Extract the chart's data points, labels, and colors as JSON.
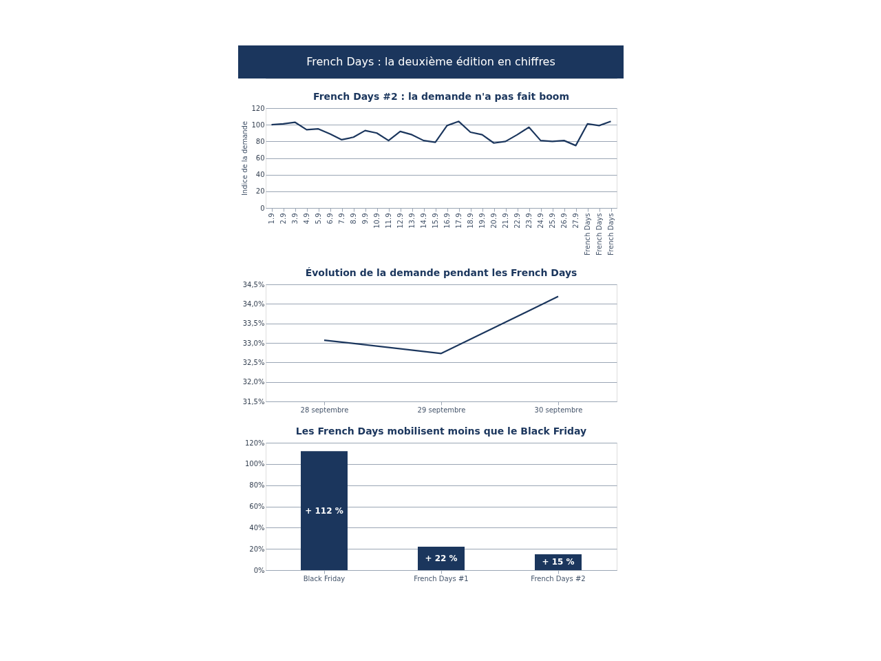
{
  "chart_data": [
    {
      "type": "line",
      "title": "French Days : la deuxième édition en chiffres",
      "subtitle": "French Days #2 : la demande n'a pas fait boom",
      "ylabel": "Indice de la demande",
      "categories": [
        "1.9",
        "2.9",
        "3.9",
        "4.9",
        "5.9",
        "6.9",
        "7.9",
        "8.9",
        "9.9",
        "10.9",
        "11.9",
        "12.9",
        "13.9",
        "14.9",
        "15.9",
        "16.9",
        "17.9",
        "18.9",
        "19.9",
        "20.9",
        "21.9",
        "22.9",
        "23.9",
        "24.9",
        "25.9",
        "26.9",
        "27.9",
        "French Days",
        "French Days",
        "French Days"
      ],
      "series": [
        {
          "color": "#1b365d",
          "values": [
            100,
            101,
            103,
            94,
            95,
            89,
            82,
            85,
            93,
            90,
            81,
            92,
            88,
            81,
            79,
            99,
            104,
            91,
            88,
            78,
            80,
            88,
            97,
            81,
            80,
            81,
            75,
            101,
            99,
            104
          ]
        }
      ],
      "ylim": [
        0,
        120
      ],
      "yticks": [
        0,
        20,
        40,
        60,
        80,
        100,
        120
      ],
      "grid": "y",
      "marker": "none",
      "line_style": "solid"
    },
    {
      "type": "line",
      "title": "Évolution de la demande pendant les French Days",
      "categories": [
        "28 septembre",
        "29 septembre",
        "30 septembre"
      ],
      "series": [
        {
          "color": "#1b365d",
          "values": [
            33.07,
            32.73,
            34.19
          ]
        }
      ],
      "ylim": [
        31.5,
        34.5
      ],
      "yticks": [
        {
          "value": 31.5,
          "label": "31,5%"
        },
        {
          "value": 32.0,
          "label": "32,0%"
        },
        {
          "value": 32.5,
          "label": "32,5%"
        },
        {
          "value": 33.0,
          "label": "33,0%"
        },
        {
          "value": 33.5,
          "label": "33,5%"
        },
        {
          "value": 34.0,
          "label": "34,0%"
        },
        {
          "value": 34.5,
          "label": "34,5%"
        }
      ],
      "grid": "y",
      "marker": "none",
      "line_style": "solid"
    },
    {
      "type": "bar",
      "title": "Les French Days mobilisent moins que le Black Friday",
      "categories": [
        "Black Friday",
        "French Days #1",
        "French Days #2"
      ],
      "values": [
        112,
        22,
        15
      ],
      "color": "#1b365d",
      "value_labels": [
        "+ 112 %",
        "+ 22 %",
        "+ 15 %"
      ],
      "ylim": [
        0,
        120
      ],
      "yticks": [
        {
          "value": 0,
          "label": "0%"
        },
        {
          "value": 20,
          "label": "20%"
        },
        {
          "value": 40,
          "label": "40%"
        },
        {
          "value": 60,
          "label": "60%"
        },
        {
          "value": 80,
          "label": "80%"
        },
        {
          "value": 100,
          "label": "100%"
        },
        {
          "value": 120,
          "label": "120%"
        }
      ],
      "grid": "y"
    }
  ]
}
